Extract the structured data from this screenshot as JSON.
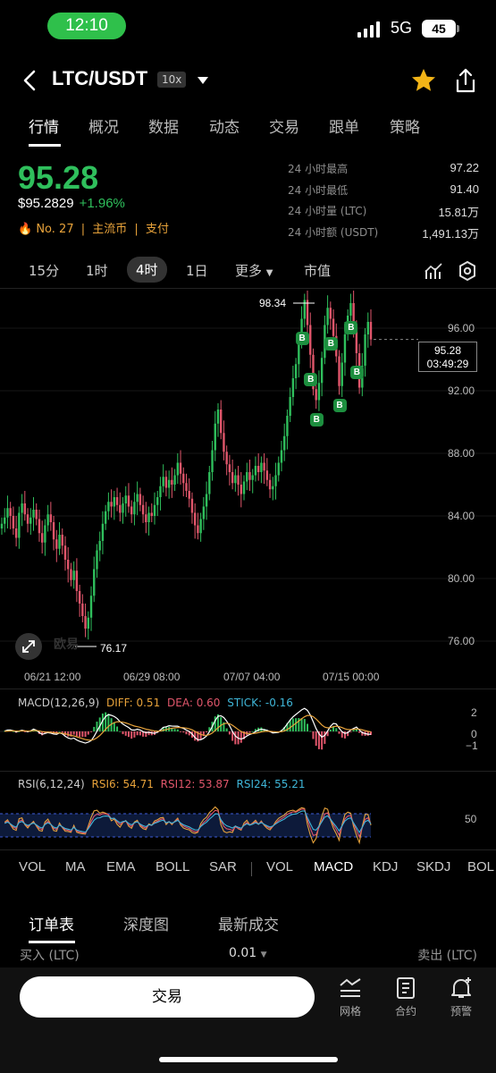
{
  "status": {
    "time": "12:10",
    "network": "5G",
    "battery": "45"
  },
  "header": {
    "pair": "LTC/USDT",
    "leverage": "10x"
  },
  "tabs": [
    "行情",
    "概况",
    "数据",
    "动态",
    "交易",
    "跟单",
    "策略"
  ],
  "price": {
    "last": "95.28",
    "usd": "$95.2829",
    "change": "+1.96%",
    "rank": "No. 27",
    "tag1": "主流币",
    "tag2": "支付"
  },
  "stats": [
    {
      "label": "24 小时最高",
      "value": "97.22"
    },
    {
      "label": "24 小时最低",
      "value": "91.40"
    },
    {
      "label": "24 小时量 (LTC)",
      "value": "15.81万"
    },
    {
      "label": "24 小时额 (USDT)",
      "value": "1,491.13万"
    }
  ],
  "intervals": [
    "15分",
    "1时",
    "4时",
    "1日",
    "更多",
    "市值"
  ],
  "chart_labels": {
    "peak": "98.34",
    "low": "76.17",
    "current_price": "95.28",
    "countdown": "03:49:29",
    "buy_marker": "B",
    "watermark": "欧易"
  },
  "main_axis": [
    "96.00",
    "92.00",
    "88.00",
    "84.00",
    "80.00",
    "76.00"
  ],
  "dates": [
    "06/21 12:00",
    "06/29 08:00",
    "07/07 04:00",
    "07/15 00:00"
  ],
  "macd": {
    "title": "MACD(12,26,9)",
    "diff": "DIFF: 0.51",
    "dea": "DEA: 0.60",
    "stick": "STICK: -0.16",
    "axis": [
      "2",
      "0",
      "−1"
    ]
  },
  "rsi": {
    "title": "RSI(6,12,24)",
    "rsi6": "RSI6: 54.71",
    "rsi12": "RSI12: 53.87",
    "rsi24": "RSI24: 55.21",
    "axis": "50"
  },
  "indicators": [
    "VOL",
    "MA",
    "EMA",
    "BOLL",
    "SAR",
    "VOL",
    "MACD",
    "KDJ",
    "SKDJ",
    "BOL"
  ],
  "book_tabs": [
    "订单表",
    "深度图",
    "最新成交"
  ],
  "book_head": {
    "buy": "买入 (LTC)",
    "step": "0.01",
    "sell": "卖出 (LTC)"
  },
  "bottom": {
    "trade": "交易",
    "nav": [
      "网格",
      "合约",
      "预警"
    ]
  },
  "colors": {
    "up": "#2fbf5c",
    "down": "#e0566b",
    "accent": "#e7a23a"
  },
  "chart_data": {
    "type": "candlestick",
    "interval": "4h",
    "x_labels": [
      "06/21 12:00",
      "06/29 08:00",
      "07/07 04:00",
      "07/15 00:00"
    ],
    "ylim": [
      75,
      99
    ],
    "y_ticks": [
      76,
      80,
      84,
      88,
      92,
      96
    ],
    "close_series": [
      83.5,
      83.9,
      84.5,
      84.0,
      83.2,
      82.6,
      84.2,
      84.8,
      84.1,
      83.5,
      83.9,
      84.4,
      83.8,
      82.9,
      82.3,
      83.4,
      84.1,
      83.6,
      82.5,
      81.9,
      82.8,
      82.1,
      81.2,
      80.6,
      79.9,
      80.5,
      79.2,
      78.4,
      77.6,
      76.8,
      77.5,
      78.9,
      80.6,
      81.8,
      82.4,
      83.5,
      84.3,
      84.9,
      84.6,
      85.2,
      84.7,
      84.2,
      84.8,
      85.3,
      84.6,
      84.1,
      84.9,
      85.4,
      84.7,
      84.1,
      83.6,
      84.2,
      84.0,
      84.7,
      85.2,
      85.9,
      86.5,
      85.8,
      86.3,
      86.0,
      86.6,
      87.4,
      86.7,
      86.1,
      85.6,
      85.1,
      84.2,
      83.4,
      82.9,
      83.8,
      84.6,
      85.4,
      86.8,
      88.2,
      89.9,
      90.8,
      89.3,
      88.1,
      87.3,
      86.8,
      86.1,
      86.6,
      86.0,
      85.4,
      86.2,
      86.8,
      86.3,
      86.6,
      87.2,
      86.8,
      87.4,
      86.9,
      86.3,
      85.7,
      85.9,
      86.6,
      87.4,
      88.2,
      89.1,
      90.4,
      91.6,
      92.8,
      93.7,
      95.1,
      96.6,
      97.8,
      96.2,
      94.3,
      92.1,
      91.4,
      92.5,
      94.1,
      96.2,
      97.3,
      96.6,
      95.5,
      94.2,
      92.3,
      93.8,
      95.6,
      96.8,
      97.6,
      96.1,
      94.4,
      92.2,
      93.6,
      95.6,
      96.4,
      95.28
    ],
    "buy_markers_at_index": [
      104,
      107,
      109,
      114,
      117,
      121,
      123
    ]
  }
}
